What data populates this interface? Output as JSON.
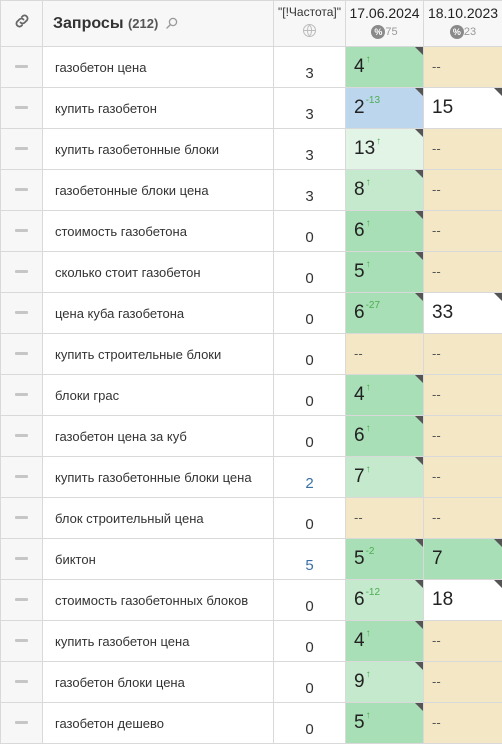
{
  "header": {
    "query_title": "Запросы",
    "query_count": "(212)",
    "freq_title": "\"[!Частота]\"",
    "dates": [
      {
        "date": "17.06.2024",
        "pct": "75"
      },
      {
        "date": "18.10.2023",
        "pct": "23"
      }
    ]
  },
  "rows": [
    {
      "query": "газобетон цена",
      "freq": "3",
      "freq_blue": false,
      "p1": {
        "val": "4",
        "chg": "↑",
        "bg": "green"
      },
      "p2": {
        "val": "--",
        "chg": "",
        "bg": "beige"
      }
    },
    {
      "query": "купить газобетон",
      "freq": "3",
      "freq_blue": false,
      "p1": {
        "val": "2",
        "chg": "-13",
        "bg": "blue"
      },
      "p2": {
        "val": "15",
        "chg": "",
        "bg": "white"
      }
    },
    {
      "query": "купить газобетонные блоки",
      "freq": "3",
      "freq_blue": false,
      "p1": {
        "val": "13",
        "chg": "↑",
        "bg": "xlgreen"
      },
      "p2": {
        "val": "--",
        "chg": "",
        "bg": "beige"
      }
    },
    {
      "query": "газобетонные блоки цена",
      "freq": "3",
      "freq_blue": false,
      "p1": {
        "val": "8",
        "chg": "↑",
        "bg": "lgreen"
      },
      "p2": {
        "val": "--",
        "chg": "",
        "bg": "beige"
      }
    },
    {
      "query": "стоимость газобетона",
      "freq": "0",
      "freq_blue": false,
      "p1": {
        "val": "6",
        "chg": "↑",
        "bg": "green"
      },
      "p2": {
        "val": "--",
        "chg": "",
        "bg": "beige"
      }
    },
    {
      "query": "сколько стоит газобетон",
      "freq": "0",
      "freq_blue": false,
      "p1": {
        "val": "5",
        "chg": "↑",
        "bg": "green"
      },
      "p2": {
        "val": "--",
        "chg": "",
        "bg": "beige"
      }
    },
    {
      "query": "цена куба газобетона",
      "freq": "0",
      "freq_blue": false,
      "p1": {
        "val": "6",
        "chg": "-27",
        "bg": "green"
      },
      "p2": {
        "val": "33",
        "chg": "",
        "bg": "white"
      }
    },
    {
      "query": "купить строительные блоки",
      "freq": "0",
      "freq_blue": false,
      "p1": {
        "val": "--",
        "chg": "",
        "bg": "beige"
      },
      "p2": {
        "val": "--",
        "chg": "",
        "bg": "beige"
      }
    },
    {
      "query": "блоки грас",
      "freq": "0",
      "freq_blue": false,
      "p1": {
        "val": "4",
        "chg": "↑",
        "bg": "green"
      },
      "p2": {
        "val": "--",
        "chg": "",
        "bg": "beige"
      }
    },
    {
      "query": "газобетон цена за куб",
      "freq": "0",
      "freq_blue": false,
      "p1": {
        "val": "6",
        "chg": "↑",
        "bg": "green"
      },
      "p2": {
        "val": "--",
        "chg": "",
        "bg": "beige"
      }
    },
    {
      "query": "купить газобетонные блоки цена",
      "freq": "2",
      "freq_blue": true,
      "p1": {
        "val": "7",
        "chg": "↑",
        "bg": "lgreen"
      },
      "p2": {
        "val": "--",
        "chg": "",
        "bg": "beige"
      }
    },
    {
      "query": "блок строительный цена",
      "freq": "0",
      "freq_blue": false,
      "p1": {
        "val": "--",
        "chg": "",
        "bg": "beige"
      },
      "p2": {
        "val": "--",
        "chg": "",
        "bg": "beige"
      }
    },
    {
      "query": "биктон",
      "freq": "5",
      "freq_blue": true,
      "p1": {
        "val": "5",
        "chg": "-2",
        "bg": "green"
      },
      "p2": {
        "val": "7",
        "chg": "",
        "bg": "green"
      }
    },
    {
      "query": "стоимость газобетонных блоков",
      "freq": "0",
      "freq_blue": false,
      "p1": {
        "val": "6",
        "chg": "-12",
        "bg": "lgreen"
      },
      "p2": {
        "val": "18",
        "chg": "",
        "bg": "white"
      }
    },
    {
      "query": "купить газобетон цена",
      "freq": "0",
      "freq_blue": false,
      "p1": {
        "val": "4",
        "chg": "↑",
        "bg": "green"
      },
      "p2": {
        "val": "--",
        "chg": "",
        "bg": "beige"
      }
    },
    {
      "query": "газобетон блоки цена",
      "freq": "0",
      "freq_blue": false,
      "p1": {
        "val": "9",
        "chg": "↑",
        "bg": "lgreen"
      },
      "p2": {
        "val": "--",
        "chg": "",
        "bg": "beige"
      }
    },
    {
      "query": "газобетон дешево",
      "freq": "0",
      "freq_blue": false,
      "p1": {
        "val": "5",
        "chg": "↑",
        "bg": "green"
      },
      "p2": {
        "val": "--",
        "chg": "",
        "bg": "beige"
      }
    }
  ]
}
